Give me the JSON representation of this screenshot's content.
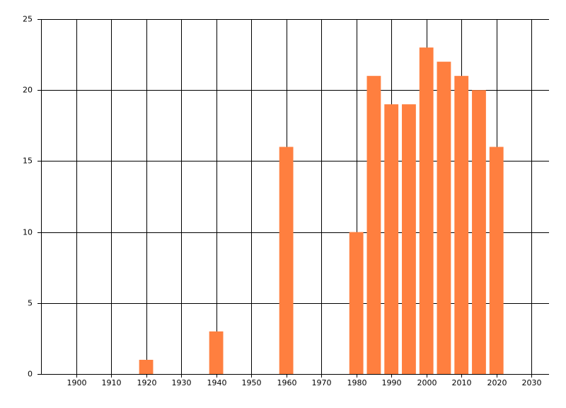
{
  "chart_data": {
    "type": "bar",
    "x": [
      1920,
      1940,
      1960,
      1980,
      1985,
      1990,
      1995,
      2000,
      2005,
      2010,
      2015,
      2020
    ],
    "values": [
      1,
      3,
      16,
      10,
      21,
      19,
      19,
      23,
      22,
      21,
      20,
      16
    ],
    "color": "#ff7f3f",
    "xlim": [
      1890,
      2035
    ],
    "xticks": [
      1900,
      1910,
      1920,
      1930,
      1940,
      1950,
      1960,
      1970,
      1980,
      1990,
      2000,
      2010,
      2020,
      2030
    ],
    "ylim": [
      0,
      25
    ],
    "yticks": [
      0,
      5,
      10,
      15,
      20,
      25
    ],
    "grid": true
  }
}
